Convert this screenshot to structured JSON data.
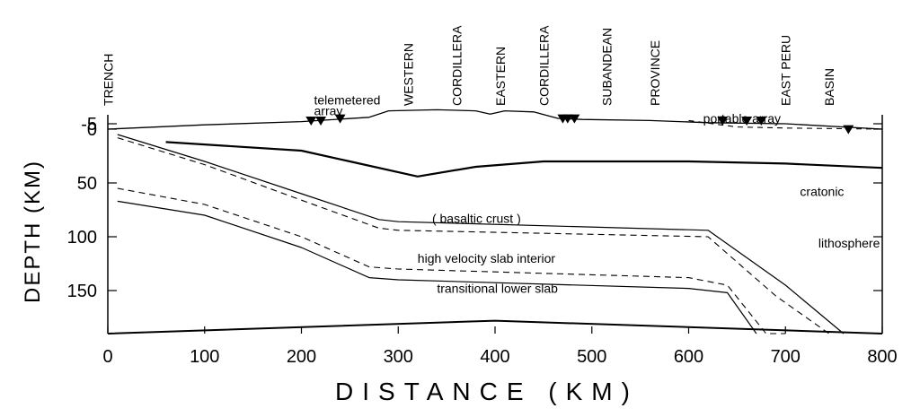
{
  "figure": {
    "x_axis": {
      "title": "DISTANCE (KM)",
      "range": [
        0,
        800
      ],
      "ticks": [
        0,
        100,
        200,
        300,
        400,
        500,
        600,
        700,
        800
      ]
    },
    "y_axis": {
      "title": "DEPTH (KM)",
      "range": [
        -5,
        190
      ],
      "ticks": [
        -5,
        0,
        50,
        100,
        150
      ]
    },
    "region_labels": [
      {
        "text": "TRENCH",
        "x": 5
      },
      {
        "text": "WESTERN",
        "x": 315
      },
      {
        "text": "CORDILLERA",
        "x": 365
      },
      {
        "text": "EASTERN",
        "x": 410
      },
      {
        "text": "CORDILLERA",
        "x": 455
      },
      {
        "text": "SUBANDEAN",
        "x": 520
      },
      {
        "text": "PROVINCE",
        "x": 570
      },
      {
        "text": "EAST PERU",
        "x": 705
      },
      {
        "text": "BASIN",
        "x": 750
      }
    ],
    "annotations": [
      {
        "text": "telemetered",
        "x": 213,
        "depth": -27
      },
      {
        "text": "array",
        "x": 213,
        "depth": -17
      },
      {
        "text": "portable array",
        "x": 615,
        "depth": -10
      },
      {
        "text": "( basaltic crust )",
        "x": 335,
        "depth": 83
      },
      {
        "text": "high velocity slab interior",
        "x": 320,
        "depth": 120
      },
      {
        "text": "transitional lower slab",
        "x": 340,
        "depth": 148
      },
      {
        "text": "cratonic",
        "x": 715,
        "depth": 58
      },
      {
        "text": "lithosphere",
        "x": 734,
        "depth": 106
      }
    ],
    "stations": [
      {
        "x": 210,
        "depth": -5
      },
      {
        "x": 220,
        "depth": -5
      },
      {
        "x": 240,
        "depth": -7
      },
      {
        "x": 470,
        "depth": -7
      },
      {
        "x": 475,
        "depth": -7
      },
      {
        "x": 482,
        "depth": -7
      },
      {
        "x": 635,
        "depth": -5
      },
      {
        "x": 660,
        "depth": -5
      },
      {
        "x": 675,
        "depth": -5
      },
      {
        "x": 765,
        "depth": 3
      }
    ],
    "lines": {
      "topography": [
        [
          0,
          0
        ],
        [
          100,
          -4
        ],
        [
          200,
          -7
        ],
        [
          270,
          -11
        ],
        [
          290,
          -17
        ],
        [
          340,
          -18
        ],
        [
          380,
          -17
        ],
        [
          395,
          -14
        ],
        [
          410,
          -17
        ],
        [
          440,
          -16
        ],
        [
          465,
          -10
        ],
        [
          490,
          -9
        ],
        [
          560,
          -8
        ],
        [
          620,
          -6
        ],
        [
          700,
          -5
        ],
        [
          800,
          0
        ]
      ],
      "basin_dashed": [
        [
          600,
          -8
        ],
        [
          650,
          -2
        ],
        [
          700,
          -1
        ],
        [
          800,
          0
        ]
      ],
      "moho": [
        [
          60,
          12
        ],
        [
          200,
          20
        ],
        [
          250,
          30
        ],
        [
          320,
          44
        ],
        [
          380,
          35
        ],
        [
          450,
          30
        ],
        [
          600,
          30
        ],
        [
          700,
          32
        ],
        [
          800,
          36
        ]
      ],
      "slab_top": [
        [
          10,
          5
        ],
        [
          100,
          30
        ],
        [
          200,
          60
        ],
        [
          280,
          84
        ],
        [
          300,
          86
        ],
        [
          620,
          94
        ],
        [
          700,
          145
        ],
        [
          760,
          200
        ]
      ],
      "slab_top_dashed": [
        [
          10,
          8
        ],
        [
          100,
          33
        ],
        [
          200,
          66
        ],
        [
          280,
          92
        ],
        [
          300,
          94
        ],
        [
          620,
          100
        ],
        [
          690,
          155
        ],
        [
          745,
          200
        ]
      ],
      "slab_lower_dashed": [
        [
          10,
          55
        ],
        [
          100,
          70
        ],
        [
          200,
          100
        ],
        [
          270,
          128
        ],
        [
          300,
          130
        ],
        [
          600,
          138
        ],
        [
          640,
          145
        ],
        [
          680,
          190
        ],
        [
          700,
          200
        ]
      ],
      "slab_bottom": [
        [
          10,
          67
        ],
        [
          100,
          80
        ],
        [
          200,
          110
        ],
        [
          270,
          138
        ],
        [
          300,
          140
        ],
        [
          600,
          148
        ],
        [
          640,
          152
        ],
        [
          670,
          200
        ]
      ],
      "bottom_boundary": [
        [
          0,
          190
        ],
        [
          400,
          178
        ],
        [
          800,
          190
        ]
      ]
    }
  }
}
